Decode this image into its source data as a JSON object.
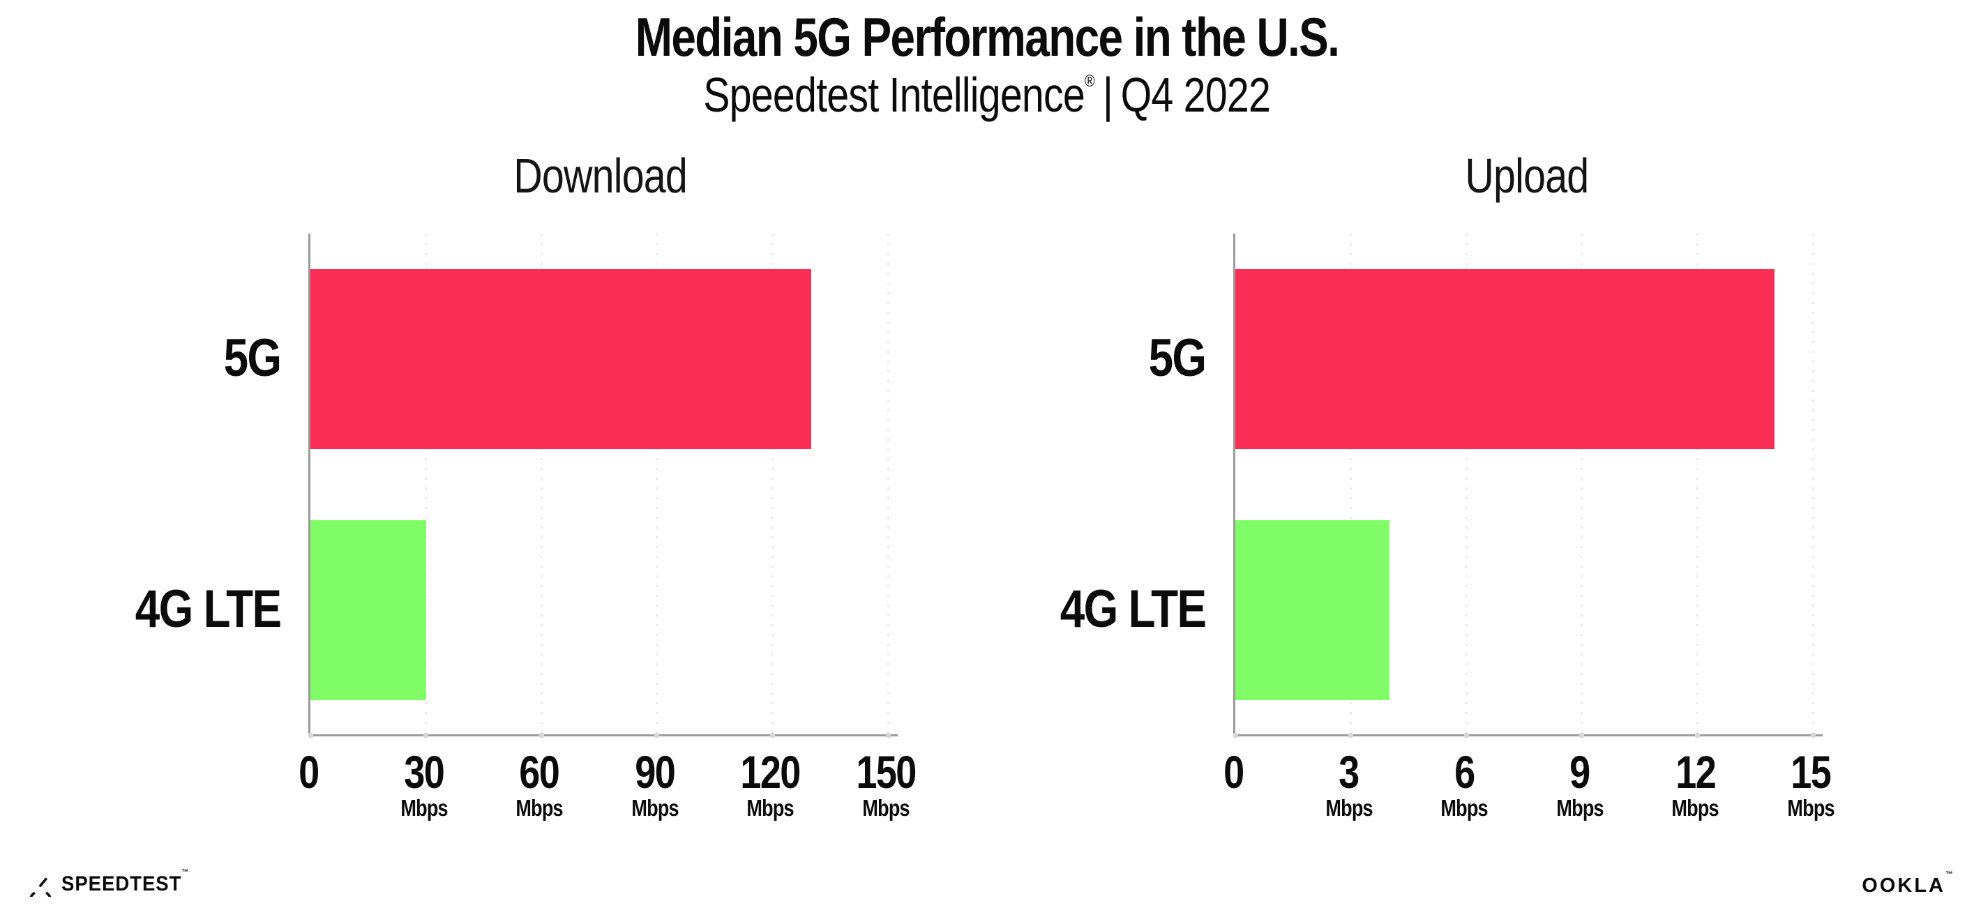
{
  "header": {
    "title": "Median 5G Performance in the U.S.",
    "subtitle": {
      "brand": "Speedtest Intelligence",
      "mark": "®",
      "separator": "|",
      "period": "Q4 2022"
    }
  },
  "chart_data": [
    {
      "type": "bar",
      "orientation": "horizontal",
      "title": "Download",
      "categories": [
        "5G",
        "4G LTE"
      ],
      "values": [
        130,
        30
      ],
      "unit": "Mbps",
      "xticks": [
        0,
        30,
        60,
        90,
        120,
        150
      ],
      "xlim": [
        0,
        152
      ],
      "grid": "vertical-dotted",
      "legend": "none",
      "bar_colors": [
        "#FA2D55",
        "#80FC66"
      ]
    },
    {
      "type": "bar",
      "orientation": "horizontal",
      "title": "Upload",
      "categories": [
        "5G",
        "4G LTE"
      ],
      "values": [
        14,
        4
      ],
      "unit": "Mbps",
      "xticks": [
        0,
        3,
        6,
        9,
        12,
        15
      ],
      "xlim": [
        0,
        15.2
      ],
      "grid": "vertical-dotted",
      "legend": "none",
      "bar_colors": [
        "#FA2D55",
        "#80FC66"
      ]
    }
  ],
  "colors": {
    "bar_5g": "#FA2D55",
    "bar_4g_lte": "#80FC66",
    "axis": "#9B9B9B",
    "gridline": "#E8E8F0",
    "tick_mark": "#D6D6E0",
    "text": "#0B0B0B",
    "background": "#FFFFFF"
  },
  "footer": {
    "speedtest": {
      "label": "SPEEDTEST",
      "mark": "™",
      "icon": "speedtest-gauge-icon"
    },
    "ookla": {
      "label": "OOKLA",
      "mark": "™"
    }
  }
}
